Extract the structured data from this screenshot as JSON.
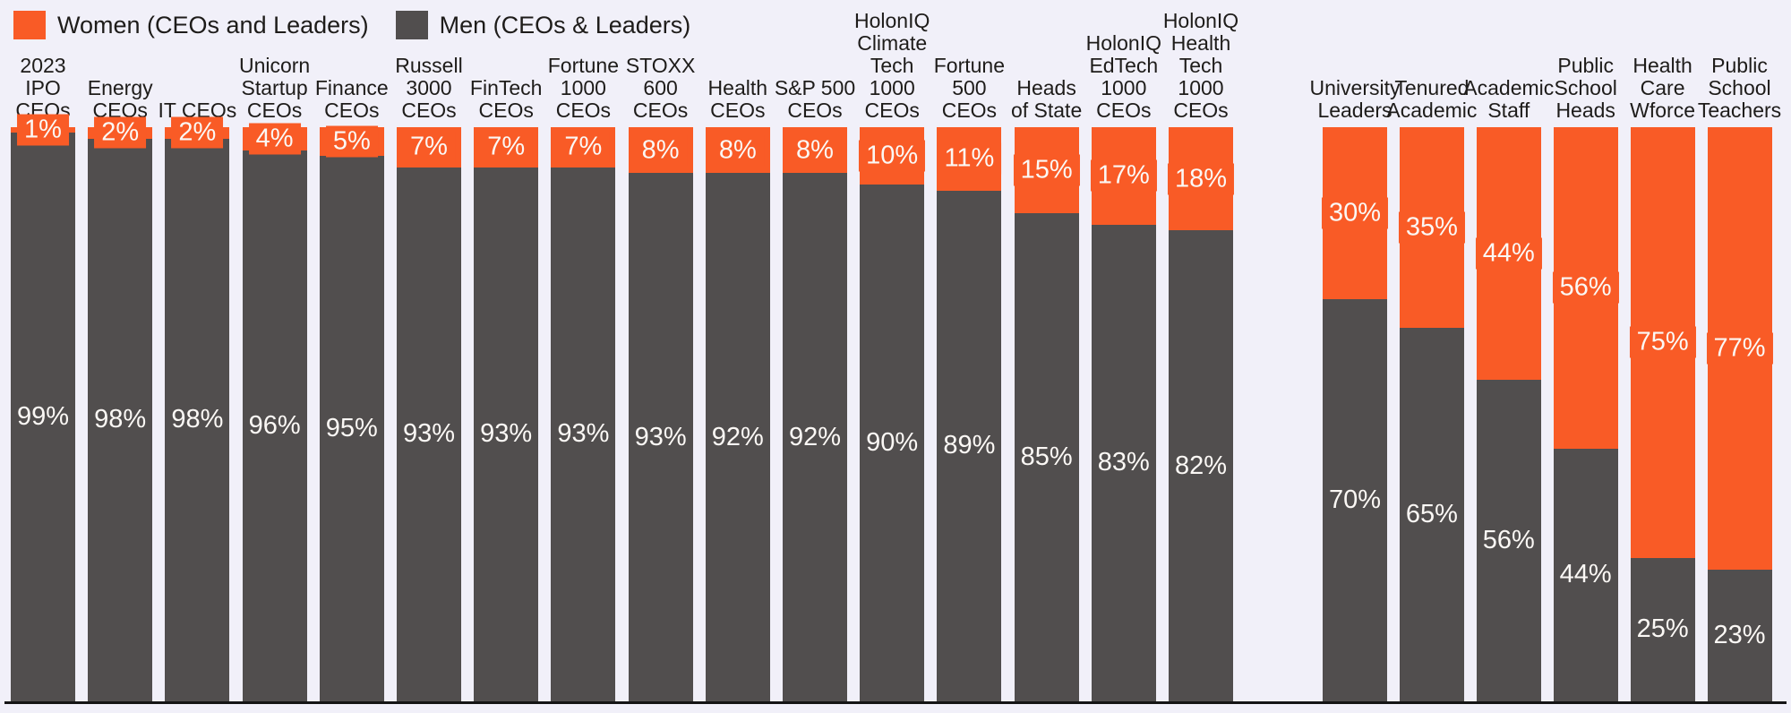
{
  "legend": {
    "women_label": "Women (CEOs and Leaders)",
    "men_label": "Men (CEOs & Leaders)"
  },
  "colors": {
    "women": "#F95B26",
    "men": "#514E4E",
    "background": "#F1F0F9",
    "baseline": "#151515",
    "bar_label_text": "#FBF8F5",
    "category_text": "#1E1C1A"
  },
  "chart_data": {
    "type": "bar",
    "variant": "100-percent-stacked-columns",
    "unit": "%",
    "ylim": [
      0,
      100
    ],
    "axes_hidden": true,
    "legend_position": "top-left",
    "legend_entries": [
      "Women (CEOs and Leaders)",
      "Men (CEOs & Leaders)"
    ],
    "categories": [
      "2023 IPO CEOs",
      "Energy CEOs",
      "IT CEOs",
      "Unicorn Startup CEOs",
      "Finance CEOs",
      "Russell 3000 CEOs",
      "FinTech CEOs",
      "Fortune 1000 CEOs",
      "STOXX 600 CEOs",
      "Health CEOs",
      "S&P 500 CEOs",
      "HolonIQ Climate Tech 1000 CEOs",
      "Fortune 500 CEOs",
      "Heads of State",
      "HolonIQ EdTech 1000 CEOs",
      "HolonIQ Health Tech 1000 CEOs",
      "University Leaders",
      "Tenured Academic",
      "Academic Staff",
      "Public School Heads",
      "Health Care Wforce",
      "Public School Teachers"
    ],
    "series": [
      {
        "name": "Women (CEOs and Leaders)",
        "color": "#F95B26",
        "values": [
          1,
          2,
          2,
          4,
          5,
          7,
          7,
          7,
          8,
          8,
          8,
          10,
          11,
          15,
          17,
          18,
          30,
          35,
          44,
          56,
          75,
          77
        ]
      },
      {
        "name": "Men (CEOs & Leaders)",
        "color": "#514E4E",
        "values": [
          99,
          98,
          98,
          96,
          95,
          93,
          93,
          93,
          93,
          92,
          92,
          90,
          89,
          85,
          83,
          82,
          70,
          65,
          56,
          44,
          25,
          23
        ]
      }
    ],
    "groups": [
      {
        "name": "corporate-and-government",
        "bars": [
          {
            "category": "2023 IPO CEOs",
            "label_lines": [
              "2023",
              "IPO",
              "CEOs"
            ],
            "women": 1,
            "men": 99
          },
          {
            "category": "Energy CEOs",
            "label_lines": [
              "Energy",
              "CEOs"
            ],
            "women": 2,
            "men": 98
          },
          {
            "category": "IT CEOs",
            "label_lines": [
              "IT CEOs"
            ],
            "women": 2,
            "men": 98
          },
          {
            "category": "Unicorn Startup CEOs",
            "label_lines": [
              "Unicorn",
              "Startup",
              "CEOs"
            ],
            "women": 4,
            "men": 96
          },
          {
            "category": "Finance CEOs",
            "label_lines": [
              "Finance",
              "CEOs"
            ],
            "women": 5,
            "men": 95
          },
          {
            "category": "Russell 3000 CEOs",
            "label_lines": [
              "Russell",
              "3000",
              "CEOs"
            ],
            "women": 7,
            "men": 93
          },
          {
            "category": "FinTech CEOs",
            "label_lines": [
              "FinTech",
              "CEOs"
            ],
            "women": 7,
            "men": 93
          },
          {
            "category": "Fortune 1000 CEOs",
            "label_lines": [
              "Fortune",
              "1000",
              "CEOs"
            ],
            "women": 7,
            "men": 93
          },
          {
            "category": "STOXX 600 CEOs",
            "label_lines": [
              "STOXX",
              "600",
              "CEOs"
            ],
            "women": 8,
            "men": 93
          },
          {
            "category": "Health CEOs",
            "label_lines": [
              "Health",
              "CEOs"
            ],
            "women": 8,
            "men": 92
          },
          {
            "category": "S&P 500 CEOs",
            "label_lines": [
              "S&P 500",
              "CEOs"
            ],
            "women": 8,
            "men": 92
          },
          {
            "category": "HolonIQ Climate Tech 1000 CEOs",
            "label_lines": [
              "HolonIQ",
              "Climate",
              "Tech",
              "1000",
              "CEOs"
            ],
            "women": 10,
            "men": 90
          },
          {
            "category": "Fortune 500 CEOs",
            "label_lines": [
              "Fortune",
              "500",
              "CEOs"
            ],
            "women": 11,
            "men": 89
          },
          {
            "category": "Heads of State",
            "label_lines": [
              "Heads",
              "of State"
            ],
            "women": 15,
            "men": 85
          },
          {
            "category": "HolonIQ EdTech 1000 CEOs",
            "label_lines": [
              "HolonIQ",
              "EdTech",
              "1000",
              "CEOs"
            ],
            "women": 17,
            "men": 83
          },
          {
            "category": "HolonIQ Health Tech 1000 CEOs",
            "label_lines": [
              "HolonIQ",
              "Health",
              "Tech",
              "1000",
              "CEOs"
            ],
            "women": 18,
            "men": 82
          }
        ]
      },
      {
        "name": "education-and-health",
        "bars": [
          {
            "category": "University Leaders",
            "label_lines": [
              "University",
              "Leaders"
            ],
            "women": 30,
            "men": 70
          },
          {
            "category": "Tenured Academic",
            "label_lines": [
              "Tenured",
              "Academic"
            ],
            "women": 35,
            "men": 65
          },
          {
            "category": "Academic Staff",
            "label_lines": [
              "Academic",
              "Staff"
            ],
            "women": 44,
            "men": 56
          },
          {
            "category": "Public School Heads",
            "label_lines": [
              "Public",
              "School",
              "Heads"
            ],
            "women": 56,
            "men": 44
          },
          {
            "category": "Health Care Wforce",
            "label_lines": [
              "Health",
              "Care",
              "Wforce"
            ],
            "women": 75,
            "men": 25
          },
          {
            "category": "Public School Teachers",
            "label_lines": [
              "Public",
              "School",
              "Teachers"
            ],
            "women": 77,
            "men": 23
          }
        ]
      }
    ]
  }
}
